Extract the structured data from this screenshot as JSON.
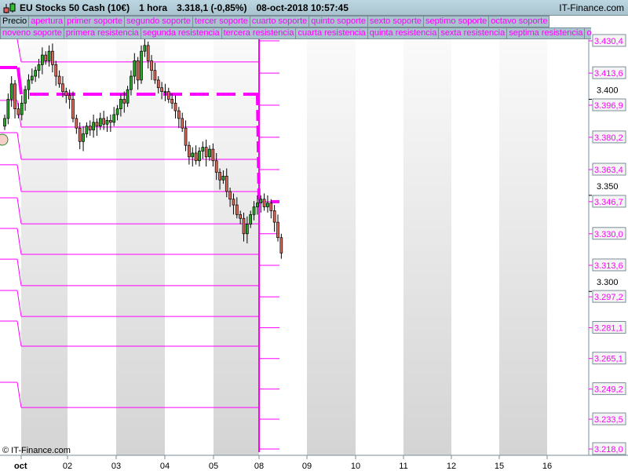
{
  "title_bar": {
    "instrument": "EU Stocks 50 Cash (10€)",
    "timeframe": "1 hora",
    "price": "3.318,1 (-0,85%)",
    "datetime": "08-oct-2018 10:57:45",
    "site": "IT-Finance.com"
  },
  "legend": {
    "row1": [
      "Precio",
      "apertura",
      "primer soporte",
      "segundo soporte",
      "tercer soporte",
      "cuarto soporte",
      "quinto soporte",
      "sexto soporte",
      "septimo soporte",
      "octavo soporte"
    ],
    "row2": [
      "noveno soporte",
      "primera resistencia",
      "segunda resistencia",
      "tercera resistencia",
      "cuarta resistencia",
      "quinta resistencia",
      "sexta resistencia",
      "septima resistencia",
      "o"
    ]
  },
  "copyright": "© IT-Finance.com",
  "colors": {
    "levels": "#ff00ff",
    "up": "#22aa22",
    "down": "#dd6655",
    "band": "#d8d8d8"
  },
  "chart_data": {
    "type": "candlestick",
    "x_tick_labels": [
      "oct",
      "02",
      "03",
      "04",
      "05",
      "08",
      "09",
      "10",
      "11",
      "12",
      "15",
      "16"
    ],
    "y_tick_labels": [
      "3.400",
      "3.350",
      "3.300"
    ],
    "level_labels": [
      "3.430,4",
      "3.413,6",
      "3.396,9",
      "3.380,2",
      "3.363,4",
      "3.346,7",
      "3.330,0",
      "3.313,6",
      "3.297,2",
      "3.281,1",
      "3.265,1",
      "3.249,2",
      "3.233,5",
      "3.218,0"
    ],
    "current_levels": [
      3430.4,
      3413.6,
      3396.9,
      3380.2,
      3363.4,
      3346.7,
      3330.0,
      3313.6,
      3297.2,
      3281.1,
      3265.1,
      3249.2,
      3233.5,
      3218.0
    ],
    "current_opening": 3346.7,
    "previous_week_levels": [
      3419.4,
      3385.5,
      3368.7,
      3352.0,
      3335.2,
      3319.3,
      3303.0,
      3287.0,
      3271.5,
      3239.6
    ],
    "previous_week_opening": 3402.6,
    "earlier_levels": [
      3399.4,
      3382.6,
      3365.9,
      3348.7,
      3332.8,
      3316.8,
      3300.5,
      3284.6,
      3252.7
    ],
    "earlier_opening": 3416.5,
    "close": [
      3390,
      3400,
      3408,
      3395,
      3392,
      3398,
      3405,
      3410,
      3412,
      3415,
      3418,
      3423,
      3420,
      3425,
      3418,
      3412,
      3408,
      3404,
      3402,
      3400,
      3390,
      3385,
      3378,
      3382,
      3386,
      3384,
      3388,
      3386,
      3390,
      3387,
      3389,
      3388,
      3392,
      3395,
      3400,
      3398,
      3405,
      3412,
      3420,
      3410,
      3425,
      3428,
      3420,
      3415,
      3410,
      3406,
      3404,
      3404,
      3400,
      3398,
      3394,
      3390,
      3385,
      3376,
      3370,
      3372,
      3368,
      3373,
      3375,
      3370,
      3374,
      3368,
      3362,
      3358,
      3360,
      3352,
      3348,
      3345,
      3340,
      3338,
      3330,
      3335,
      3340,
      3344,
      3346,
      3348,
      3344,
      3346,
      3342,
      3336,
      3328,
      3320
    ],
    "y_range": [
      3218.0,
      3430.4
    ]
  }
}
